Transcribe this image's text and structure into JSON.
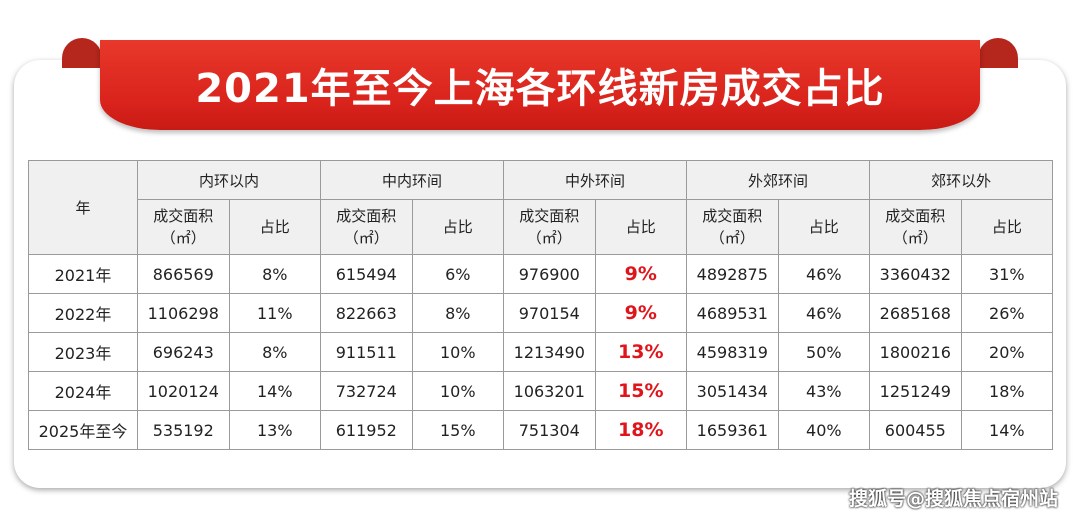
{
  "title": "2021年至今上海各环线新房成交占比",
  "table": {
    "year_header": "年",
    "groups": [
      "内环以内",
      "中内环间",
      "中外环间",
      "外郊环间",
      "郊环以外"
    ],
    "sub_area": "成交面积",
    "sub_area_unit": "（㎡）",
    "sub_share": "占比",
    "highlight_color": "#e0141b",
    "rows": [
      {
        "year": "2021年",
        "cells": [
          "866569",
          "8%",
          "615494",
          "6%",
          "976900",
          "9%",
          "4892875",
          "46%",
          "3360432",
          "31%"
        ]
      },
      {
        "year": "2022年",
        "cells": [
          "1106298",
          "11%",
          "822663",
          "8%",
          "970154",
          "9%",
          "4689531",
          "46%",
          "2685168",
          "26%"
        ]
      },
      {
        "year": "2023年",
        "cells": [
          "696243",
          "8%",
          "911511",
          "10%",
          "1213490",
          "13%",
          "4598319",
          "50%",
          "1800216",
          "20%"
        ]
      },
      {
        "year": "2024年",
        "cells": [
          "1020124",
          "14%",
          "732724",
          "10%",
          "1063201",
          "15%",
          "3051434",
          "43%",
          "1251249",
          "18%"
        ]
      },
      {
        "year": "2025年至今",
        "cells": [
          "535192",
          "13%",
          "611952",
          "15%",
          "751304",
          "18%",
          "1659361",
          "40%",
          "600455",
          "14%"
        ]
      }
    ]
  },
  "watermark": "搜狐号@搜狐焦点宿州站"
}
